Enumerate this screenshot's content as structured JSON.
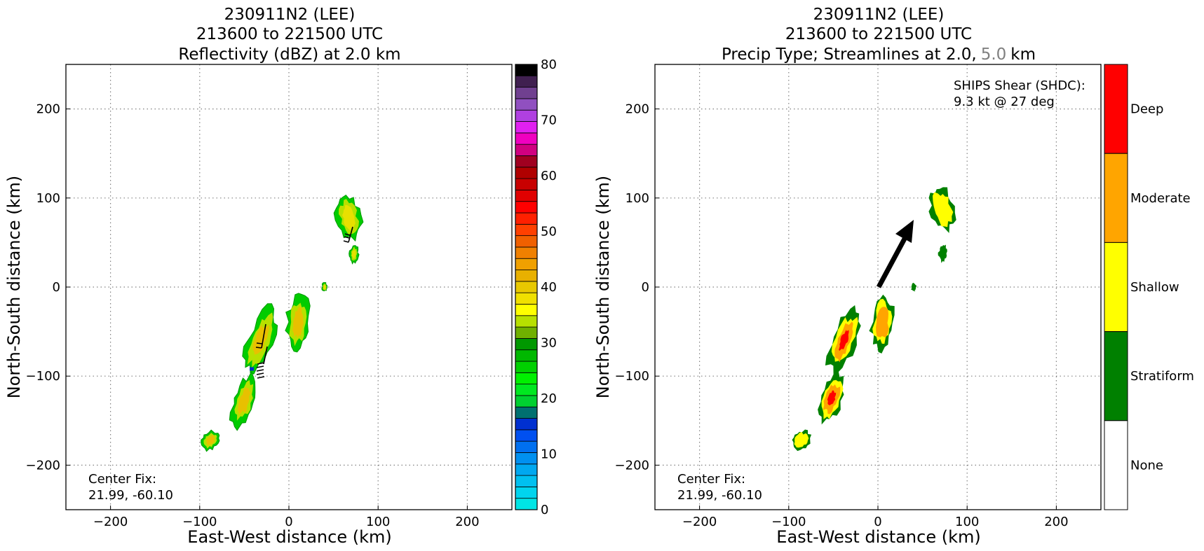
{
  "left_panel": {
    "title_line1": "230911N2 (LEE)",
    "title_line2": "213600 to 221500 UTC",
    "title_line3": "Reflectivity (dBZ) at 2.0 km",
    "xlabel": "East-West distance (km)",
    "ylabel": "North-South distance (km)",
    "center_fix_label": "Center Fix:",
    "center_fix_value": "21.99, -60.10",
    "colorbar_ticks": [
      "0",
      "10",
      "20",
      "30",
      "40",
      "50",
      "60",
      "70",
      "80"
    ]
  },
  "right_panel": {
    "title_line1": "230911N2 (LEE)",
    "title_line2": "213600 to 221500 UTC",
    "title_line3_prefix": "Precip Type; Streamlines at 2.0,",
    "title_line3_highlight": "5.0",
    "title_line3_suffix": "km",
    "xlabel": "East-West distance (km)",
    "ylabel": "North-South distance (km)",
    "center_fix_label": "Center Fix:",
    "center_fix_value": "21.99, -60.10",
    "shear_label": "SHIPS Shear (SHDC):",
    "shear_value": "9.3 kt @ 27 deg",
    "colorbar_labels": [
      "Deep",
      "Moderate",
      "Shallow",
      "Stratiform",
      "None"
    ]
  },
  "colors": {
    "none": "#ffffff",
    "stratiform": "#008000",
    "shallow": "#ffff00",
    "moderate": "#ffa500",
    "deep": "#ff0000",
    "title_highlight": "#808080"
  },
  "chart_data": [
    {
      "type": "heatmap",
      "title": "230911N2 (LEE) 213600 to 221500 UTC Reflectivity (dBZ) at 2.0 km",
      "xlabel": "East-West distance (km)",
      "ylabel": "North-South distance (km)",
      "xlim": [
        -250,
        250
      ],
      "ylim": [
        -250,
        250
      ],
      "xticks": [
        -200,
        -100,
        0,
        100,
        200
      ],
      "yticks": [
        -200,
        -100,
        0,
        100,
        200
      ],
      "grid": true,
      "colorbar": {
        "min": 0,
        "max": 80,
        "step": 2.5,
        "colors": [
          "#00e5e5",
          "#00d4ee",
          "#00c0f0",
          "#00a8f0",
          "#0090f0",
          "#0070f0",
          "#0050f0",
          "#0030d0",
          "#007070",
          "#00d030",
          "#00e820",
          "#00f000",
          "#00d000",
          "#00b800",
          "#009800",
          "#70b000",
          "#b8e000",
          "#ffff00",
          "#f0e000",
          "#e8c800",
          "#e8b000",
          "#f0a000",
          "#f08000",
          "#f06000",
          "#ff4000",
          "#ff2000",
          "#ff0000",
          "#e00000",
          "#c80000",
          "#b00000",
          "#a00020",
          "#d00080",
          "#f000c0",
          "#e020f0",
          "#b040e0",
          "#9050c0",
          "#704090",
          "#402050",
          "#000000"
        ]
      },
      "regions": [
        {
          "name": "cell-ne",
          "x": 67,
          "y": 78,
          "level_dbz": 30
        },
        {
          "name": "cell-north-tail",
          "x": 73,
          "y": 37,
          "level_dbz": 25
        },
        {
          "name": "cell-center",
          "x": 10,
          "y": -40,
          "level_dbz": 32
        },
        {
          "name": "cell-dot",
          "x": 40,
          "y": 0,
          "level_dbz": 25
        },
        {
          "name": "cell-mid",
          "x": -32,
          "y": -60,
          "level_dbz": 35
        },
        {
          "name": "cell-sw",
          "x": -50,
          "y": -128,
          "level_dbz": 35
        },
        {
          "name": "cell-far-sw",
          "x": -88,
          "y": -172,
          "level_dbz": 33
        }
      ]
    },
    {
      "type": "heatmap",
      "title": "230911N2 (LEE) 213600 to 221500 UTC Precip Type; Streamlines at 2.0, 5.0 km",
      "xlabel": "East-West distance (km)",
      "ylabel": "North-South distance (km)",
      "xlim": [
        -250,
        250
      ],
      "ylim": [
        -250,
        250
      ],
      "xticks": [
        -200,
        -100,
        0,
        100,
        200
      ],
      "yticks": [
        -200,
        -100,
        0,
        100,
        200
      ],
      "grid": true,
      "categories": [
        "None",
        "Stratiform",
        "Shallow",
        "Moderate",
        "Deep"
      ],
      "shear_vector": {
        "from": [
          0,
          0
        ],
        "to": [
          40,
          78
        ],
        "magnitude_kt": 9.3,
        "direction_deg": 27
      },
      "regions": [
        {
          "name": "cell-ne",
          "x": 72,
          "y": 88,
          "category": "Stratiform"
        },
        {
          "name": "cell-north-tail",
          "x": 73,
          "y": 38,
          "category": "Stratiform"
        },
        {
          "name": "cell-center",
          "x": 5,
          "y": -40,
          "category": "Moderate"
        },
        {
          "name": "cell-dot",
          "x": 40,
          "y": 0,
          "category": "Stratiform"
        },
        {
          "name": "cell-mid",
          "x": -38,
          "y": -60,
          "category": "Deep"
        },
        {
          "name": "cell-sw",
          "x": -52,
          "y": -125,
          "category": "Deep"
        },
        {
          "name": "cell-far-sw",
          "x": -86,
          "y": -172,
          "category": "Shallow"
        }
      ]
    }
  ]
}
